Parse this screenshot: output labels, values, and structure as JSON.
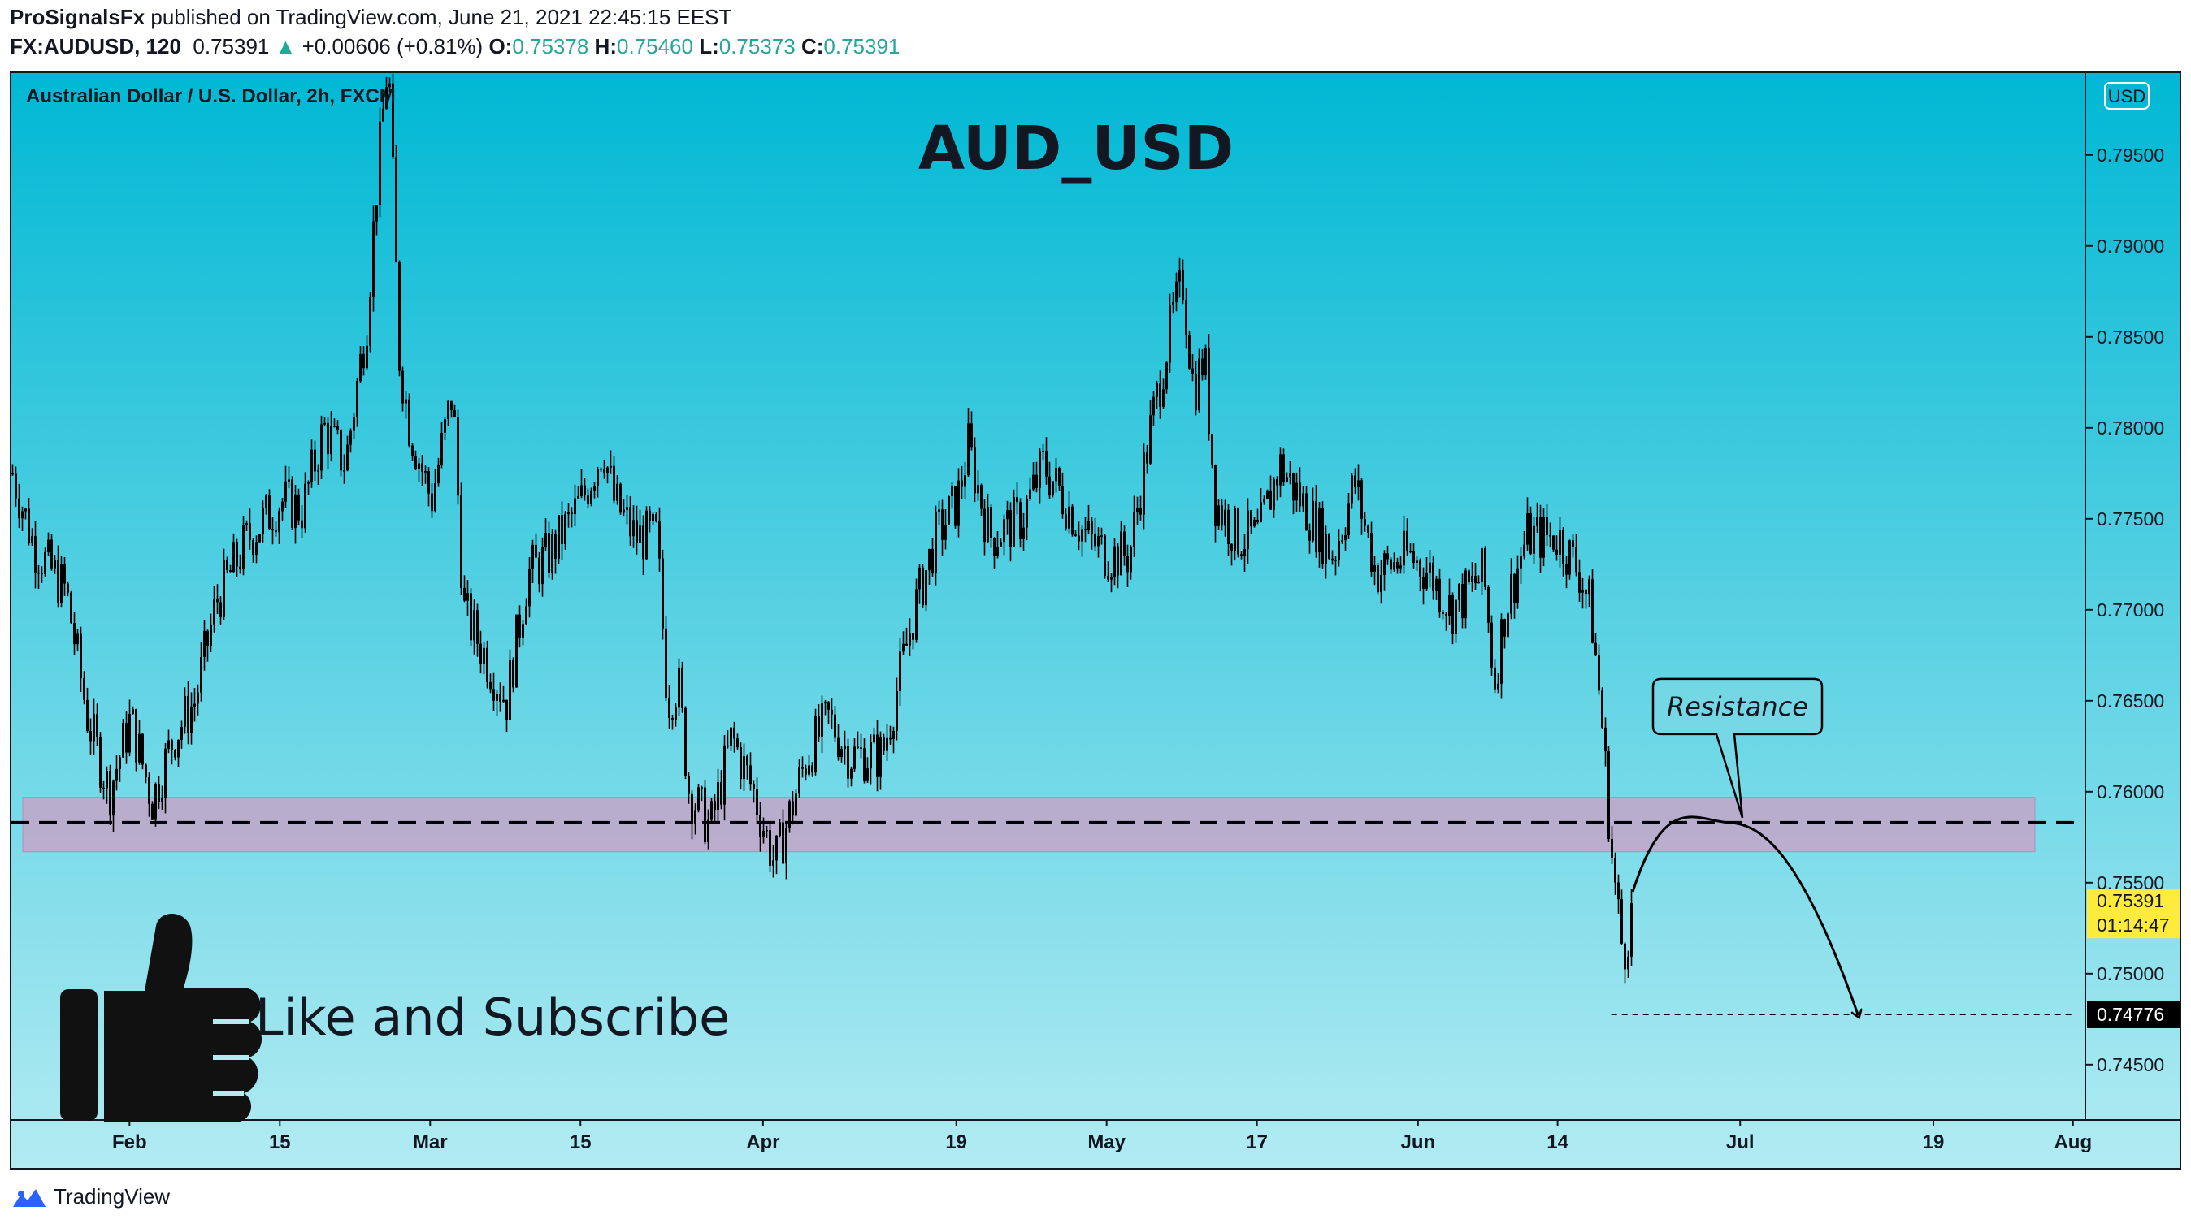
{
  "header": {
    "publisher": "ProSignalsFx",
    "published_text": "published on TradingView.com, June 21, 2021 22:45:15 EEST",
    "symbol": "FX:AUDUSD, 120",
    "last": "0.75391",
    "change_arrow": "▲",
    "change": "+0.00606 (+0.81%)",
    "o_label": "O:",
    "o_value": "0.75378",
    "h_label": "H:",
    "h_value": "0.75460",
    "l_label": "L:",
    "l_value": "0.75373",
    "c_label": "C:",
    "c_value": "0.75391"
  },
  "footer": {
    "brand": "TradingView",
    "logo_icon": "tradingview-logo-icon"
  },
  "colors": {
    "bg_top": "#00b8d4",
    "bg_bottom": "#b2ebf2",
    "zone": "#c4a5c9",
    "up": "#26a69a",
    "price_tag": "#ffeb3b",
    "target_tag": "#000000"
  },
  "chart_data": {
    "type": "candlestick",
    "title": "AUD_USD",
    "instrument_label": "Australian Dollar / U.S. Dollar, 2h, FXCM",
    "currency": "USD",
    "ylim": [
      0.742,
      0.7995
    ],
    "y_ticks": [
      0.795,
      0.79,
      0.785,
      0.78,
      0.775,
      0.77,
      0.765,
      0.76,
      0.755,
      0.75,
      0.745
    ],
    "y_tick_labels": [
      "0.79500",
      "0.79000",
      "0.78500",
      "0.78000",
      "0.77500",
      "0.77000",
      "0.76500",
      "0.76000",
      "0.75500",
      "0.75000",
      "0.74500"
    ],
    "x_range": [
      "2021-01-21",
      "2021-08-02"
    ],
    "x_ticks": [
      {
        "date": "2021-02-01",
        "label": "Feb"
      },
      {
        "date": "2021-02-15",
        "label": "15"
      },
      {
        "date": "2021-03-01",
        "label": "Mar"
      },
      {
        "date": "2021-03-15",
        "label": "15"
      },
      {
        "date": "2021-04-01",
        "label": "Apr"
      },
      {
        "date": "2021-04-19",
        "label": "19"
      },
      {
        "date": "2021-05-03",
        "label": "May"
      },
      {
        "date": "2021-05-17",
        "label": "17"
      },
      {
        "date": "2021-06-01",
        "label": "Jun"
      },
      {
        "date": "2021-06-14",
        "label": "14"
      },
      {
        "date": "2021-07-01",
        "label": "Jul"
      },
      {
        "date": "2021-07-19",
        "label": "19"
      },
      {
        "date": "2021-08-01",
        "label": "Aug"
      }
    ],
    "price_path": [
      [
        "2021-01-21",
        0.7775
      ],
      [
        "2021-01-23",
        0.7735
      ],
      [
        "2021-01-26",
        0.771
      ],
      [
        "2021-01-28",
        0.764
      ],
      [
        "2021-01-30",
        0.76
      ],
      [
        "2021-02-01",
        0.764
      ],
      [
        "2021-02-03",
        0.7595
      ],
      [
        "2021-02-05",
        0.763
      ],
      [
        "2021-02-07",
        0.765
      ],
      [
        "2021-02-09",
        0.7705
      ],
      [
        "2021-02-12",
        0.774
      ],
      [
        "2021-02-15",
        0.776
      ],
      [
        "2021-02-17",
        0.7755
      ],
      [
        "2021-02-19",
        0.78
      ],
      [
        "2021-02-21",
        0.778
      ],
      [
        "2021-02-23",
        0.786
      ],
      [
        "2021-02-24",
        0.794
      ],
      [
        "2021-02-25",
        0.8005
      ],
      [
        "2021-02-26",
        0.784
      ],
      [
        "2021-02-27",
        0.78
      ],
      [
        "2021-03-01",
        0.776
      ],
      [
        "2021-03-03",
        0.782
      ],
      [
        "2021-03-04",
        0.77
      ],
      [
        "2021-03-08",
        0.765
      ],
      [
        "2021-03-10",
        0.772
      ],
      [
        "2021-03-12",
        0.773
      ],
      [
        "2021-03-15",
        0.776
      ],
      [
        "2021-03-17",
        0.779
      ],
      [
        "2021-03-18",
        0.776
      ],
      [
        "2021-03-20",
        0.774
      ],
      [
        "2021-03-22",
        0.774
      ],
      [
        "2021-03-23",
        0.765
      ],
      [
        "2021-03-24",
        0.766
      ],
      [
        "2021-03-25",
        0.76
      ],
      [
        "2021-03-27",
        0.758
      ],
      [
        "2021-03-29",
        0.763
      ],
      [
        "2021-03-31",
        0.76
      ],
      [
        "2021-04-01",
        0.758
      ],
      [
        "2021-04-02",
        0.756
      ],
      [
        "2021-04-05",
        0.762
      ],
      [
        "2021-04-07",
        0.764
      ],
      [
        "2021-04-09",
        0.762
      ],
      [
        "2021-04-12",
        0.762
      ],
      [
        "2021-04-15",
        0.77
      ],
      [
        "2021-04-17",
        0.774
      ],
      [
        "2021-04-19",
        0.776
      ],
      [
        "2021-04-20",
        0.779
      ],
      [
        "2021-04-22",
        0.774
      ],
      [
        "2021-04-25",
        0.775
      ],
      [
        "2021-04-27",
        0.778
      ],
      [
        "2021-04-29",
        0.776
      ],
      [
        "2021-05-01",
        0.774
      ],
      [
        "2021-05-03",
        0.773
      ],
      [
        "2021-05-05",
        0.773
      ],
      [
        "2021-05-07",
        0.78
      ],
      [
        "2021-05-09",
        0.786
      ],
      [
        "2021-05-10",
        0.788
      ],
      [
        "2021-05-11",
        0.782
      ],
      [
        "2021-05-12",
        0.784
      ],
      [
        "2021-05-13",
        0.776
      ],
      [
        "2021-05-15",
        0.774
      ],
      [
        "2021-05-17",
        0.774
      ],
      [
        "2021-05-19",
        0.778
      ],
      [
        "2021-05-21",
        0.776
      ],
      [
        "2021-05-24",
        0.773
      ],
      [
        "2021-05-26",
        0.777
      ],
      [
        "2021-05-28",
        0.772
      ],
      [
        "2021-05-31",
        0.773
      ],
      [
        "2021-06-02",
        0.772
      ],
      [
        "2021-06-04",
        0.77
      ],
      [
        "2021-06-07",
        0.772
      ],
      [
        "2021-06-08",
        0.766
      ],
      [
        "2021-06-09",
        0.77
      ],
      [
        "2021-06-11",
        0.774
      ],
      [
        "2021-06-14",
        0.774
      ],
      [
        "2021-06-16",
        0.772
      ],
      [
        "2021-06-17",
        0.77
      ],
      [
        "2021-06-18",
        0.764
      ],
      [
        "2021-06-19",
        0.756
      ],
      [
        "2021-06-20",
        0.751
      ],
      [
        "2021-06-21",
        0.7539
      ]
    ],
    "annotations": {
      "support_zone": {
        "from": 0.7567,
        "to": 0.7597
      },
      "dashed_level": 0.7583,
      "target_level": 0.74776,
      "target_label": "0.74776",
      "current_price_label": "0.75391",
      "countdown": "01:14:47",
      "callout": "Resistance",
      "arc": {
        "start_date": "2021-06-21",
        "start_price": 0.7545,
        "peak_date": "2021-06-30",
        "peak_price": 0.7583,
        "end_date": "2021-07-12",
        "end_price": 0.7477
      },
      "promo_text": "Like and Subscribe",
      "promo_icon": "thumbs-up-icon"
    }
  }
}
